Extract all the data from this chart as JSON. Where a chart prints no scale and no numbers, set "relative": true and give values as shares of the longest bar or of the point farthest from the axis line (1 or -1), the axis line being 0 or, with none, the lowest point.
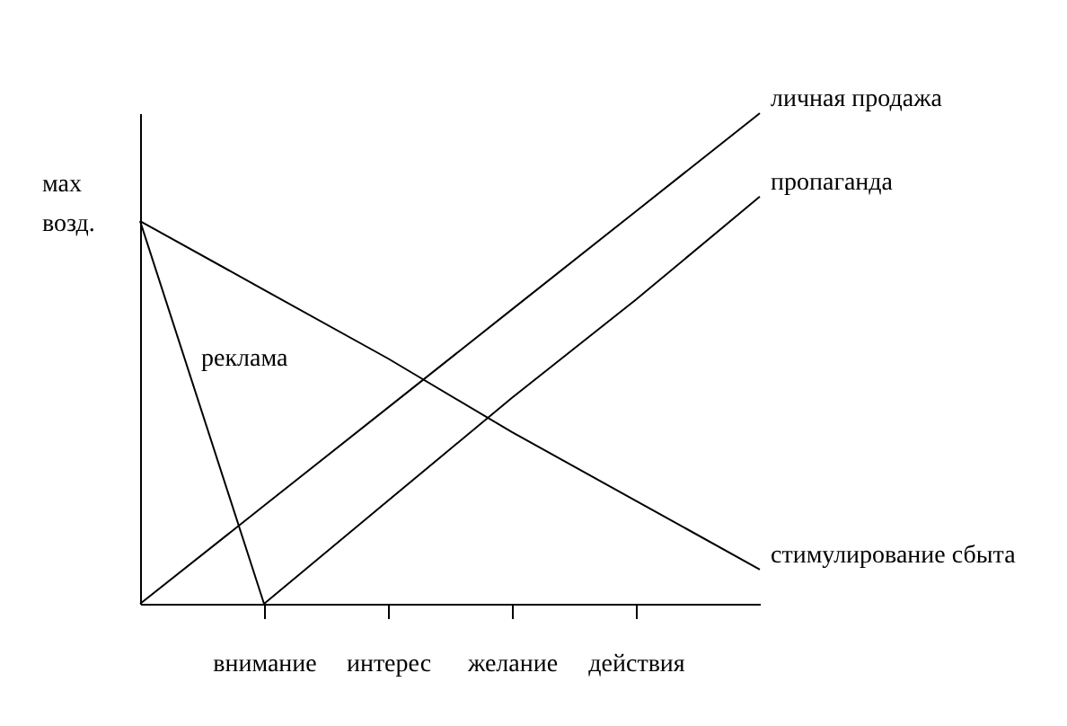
{
  "chart_data": {
    "type": "line",
    "relative": true,
    "ylabel": "мах возд.",
    "legend": false,
    "categories": [
      null,
      "внимание",
      "интерес",
      "желание",
      "действия",
      null
    ],
    "series": [
      {
        "name": "реклама",
        "color": "#000000",
        "values": [
          0.78,
          0,
          null,
          null,
          null,
          null
        ]
      },
      {
        "name": "стимулирование сбыта",
        "color": "#000000",
        "values": [
          0.78,
          0.64,
          0.5,
          0.35,
          0.21,
          0.07
        ]
      },
      {
        "name": "личная продажа",
        "color": "#000000",
        "values": [
          0,
          0.2,
          0.4,
          0.6,
          0.8,
          1
        ]
      },
      {
        "name": "пропаганда",
        "color": "#000000",
        "values": [
          null,
          0,
          0.21,
          0.42,
          0.62,
          0.83
        ]
      }
    ]
  }
}
